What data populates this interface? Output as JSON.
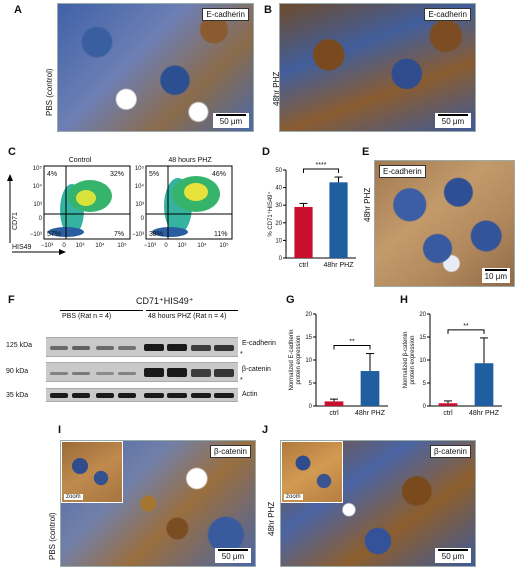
{
  "panels": {
    "A": {
      "letter": "A",
      "side": "PBS (control)",
      "marker": "E-cadherin",
      "scale": "50 μm"
    },
    "B": {
      "letter": "B",
      "side": "48hr PHZ",
      "marker": "E-cadherin",
      "scale": "50 μm"
    },
    "C": {
      "letter": "C",
      "title_left": "Control",
      "title_right": "48 hours PHZ",
      "y_axis": "CD71",
      "x_axis": "HIS49",
      "left_quadrants": {
        "ul": "4%",
        "ur": "32%",
        "ll": "57%",
        "lr": "7%"
      },
      "right_quadrants": {
        "ul": "5%",
        "ur": "46%",
        "ll": "38%",
        "lr": "11%"
      },
      "y_ticks": [
        "10⁵",
        "10⁴",
        "10³",
        "0",
        "−10³"
      ],
      "x_ticks": [
        "−10³",
        "0",
        "10³",
        "10⁴",
        "10⁵"
      ]
    },
    "D": {
      "letter": "D",
      "ylabel": "% CD71⁺HIS49⁺",
      "sig": "****"
    },
    "E": {
      "letter": "E",
      "side": "48hr PHZ",
      "marker": "E-cadherin",
      "scale": "10 μm"
    },
    "F": {
      "letter": "F",
      "header": "CD71⁺HIS49⁺",
      "group1": "PBS   (Rat n = 4)",
      "group2": "48 hours PHZ   (Rat n = 4)",
      "kda": [
        "125 kDa",
        "90 kDa",
        "35 kDa"
      ],
      "proteins": [
        "E-cadherin",
        "β-catenin",
        "Actin"
      ],
      "star": "*"
    },
    "G": {
      "letter": "G",
      "ylabel": "Normalized E-cadherin protein expression",
      "sig": "**"
    },
    "H": {
      "letter": "H",
      "ylabel": "Normalized β-catenin protein expression",
      "sig": "**"
    },
    "I": {
      "letter": "I",
      "side": "PBS (control)",
      "marker": "β-catenin",
      "scale": "50 μm",
      "zoom": "zoom"
    },
    "J": {
      "letter": "J",
      "side": "48hr PHZ",
      "marker": "β-catenin",
      "scale": "50 μm",
      "zoom": "zoom"
    }
  },
  "chart_data": [
    {
      "panel": "D",
      "type": "bar",
      "categories": [
        "ctrl",
        "48hr PHZ"
      ],
      "values": [
        29,
        43
      ],
      "errors": [
        2,
        3
      ],
      "colors": [
        "#c8102e",
        "#1f5fa0"
      ],
      "ylabel": "% CD71⁺HIS49⁺",
      "ylim": [
        0,
        50
      ],
      "yticks": [
        0,
        10,
        20,
        30,
        40,
        50
      ]
    },
    {
      "panel": "G",
      "type": "bar",
      "categories": [
        "ctrl",
        "48hr PHZ"
      ],
      "values": [
        1.0,
        7.6
      ],
      "errors": [
        0.5,
        3.8
      ],
      "colors": [
        "#c8102e",
        "#1f5fa0"
      ],
      "ylabel": "Normalized E-cadherin protein expression",
      "ylim": [
        0,
        20
      ],
      "yticks": [
        0,
        5,
        10,
        15,
        20
      ]
    },
    {
      "panel": "H",
      "type": "bar",
      "categories": [
        "ctrl",
        "48hr PHZ"
      ],
      "values": [
        0.6,
        9.3
      ],
      "errors": [
        0.5,
        5.5
      ],
      "colors": [
        "#c8102e",
        "#1f5fa0"
      ],
      "ylabel": "Normalized β-catenin protein expression",
      "ylim": [
        0,
        20
      ],
      "yticks": [
        0,
        5,
        10,
        15,
        20
      ]
    }
  ]
}
